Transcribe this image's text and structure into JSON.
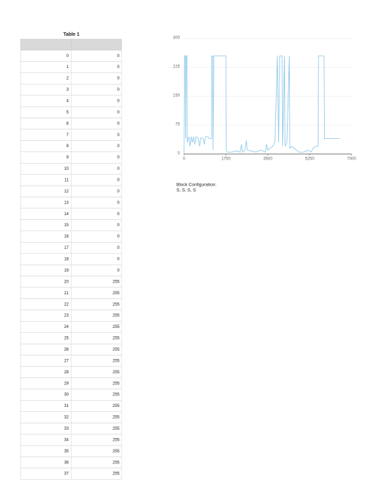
{
  "table": {
    "title": "Table 1",
    "rows": [
      [
        0,
        0
      ],
      [
        1,
        0
      ],
      [
        2,
        0
      ],
      [
        3,
        0
      ],
      [
        4,
        0
      ],
      [
        5,
        0
      ],
      [
        6,
        0
      ],
      [
        7,
        0
      ],
      [
        8,
        0
      ],
      [
        9,
        0
      ],
      [
        10,
        0
      ],
      [
        11,
        0
      ],
      [
        12,
        0
      ],
      [
        13,
        0
      ],
      [
        14,
        0
      ],
      [
        15,
        0
      ],
      [
        16,
        0
      ],
      [
        17,
        0
      ],
      [
        18,
        0
      ],
      [
        19,
        0
      ],
      [
        20,
        255
      ],
      [
        21,
        255
      ],
      [
        22,
        255
      ],
      [
        23,
        255
      ],
      [
        24,
        255
      ],
      [
        25,
        255
      ],
      [
        26,
        255
      ],
      [
        27,
        255
      ],
      [
        28,
        255
      ],
      [
        29,
        255
      ],
      [
        30,
        255
      ],
      [
        31,
        255
      ],
      [
        32,
        255
      ],
      [
        33,
        255
      ],
      [
        34,
        255
      ],
      [
        35,
        255
      ],
      [
        36,
        255
      ],
      [
        37,
        255
      ]
    ]
  },
  "chart_data": {
    "type": "line",
    "x": [
      0,
      20,
      60,
      70,
      90,
      120,
      130,
      200,
      250,
      300,
      350,
      400,
      450,
      500,
      600,
      650,
      700,
      800,
      850,
      900,
      1000,
      1050,
      1150,
      1160,
      1200,
      1210,
      1250,
      1750,
      1760,
      1800,
      2000,
      2200,
      2350,
      2400,
      2450,
      2550,
      2600,
      2650,
      2800,
      3000,
      3200,
      3400,
      3450,
      3500,
      3600,
      3700,
      3800,
      3900,
      3950,
      4000,
      4100,
      4120,
      4200,
      4220,
      4300,
      4400,
      4420,
      4500,
      4600,
      4800,
      5000,
      5200,
      5300,
      5400,
      5500,
      5600,
      5620,
      5850,
      5870,
      6500
    ],
    "series": [
      {
        "color": "#8ec9ea",
        "values": [
          0,
          255,
          255,
          40,
          255,
          255,
          30,
          45,
          20,
          45,
          30,
          45,
          25,
          45,
          40,
          20,
          42,
          40,
          25,
          45,
          45,
          40,
          40,
          255,
          255,
          10,
          255,
          255,
          10,
          5,
          5,
          8,
          5,
          25,
          5,
          10,
          35,
          10,
          8,
          5,
          10,
          5,
          25,
          10,
          15,
          20,
          30,
          255,
          30,
          255,
          255,
          20,
          255,
          20,
          30,
          255,
          15,
          20,
          15,
          5,
          5,
          10,
          5,
          15,
          20,
          20,
          255,
          255,
          40,
          40
        ]
      }
    ],
    "xlim": [
      0,
      7000
    ],
    "ylim": [
      0,
      300
    ],
    "xticks": [
      0,
      1750,
      3500,
      5250,
      7000
    ],
    "yticks": [
      0,
      75,
      150,
      225,
      300
    ],
    "grid": true
  },
  "note": {
    "label": "Block Configuration:",
    "value": "S, S, S, S"
  }
}
